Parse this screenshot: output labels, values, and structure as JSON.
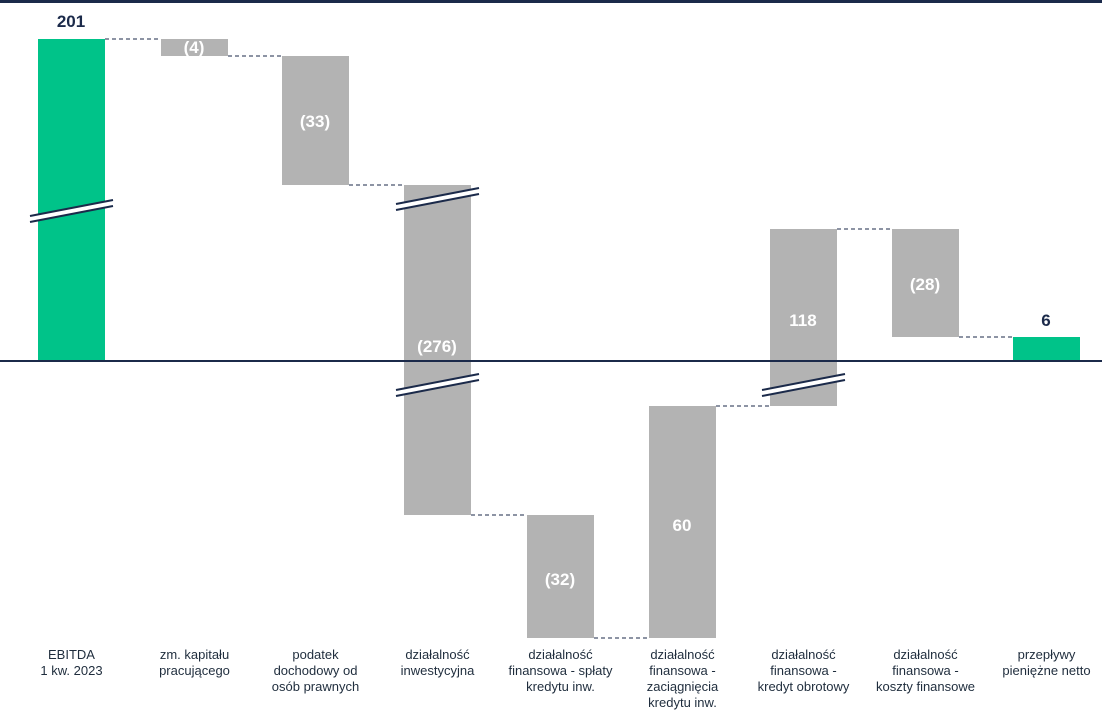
{
  "chart_data": {
    "type": "waterfall",
    "title": "",
    "xlabel": "",
    "ylabel": "",
    "axis_breaks": true,
    "categories": [
      "EBITDA\n1 kw. 2023",
      "zm. kapitału\npracującego",
      "podatek\ndochodowy od\nosób prawnych",
      "działalność\ninwestycyjna",
      "działalność\nfinansowa - spłaty\nkredytu inw.",
      "działalność\nfinansowa -\nzaciągnięcia\nkredytu inw.",
      "działalność\nfinansowa -\nkredyt obrotowy",
      "działalność\nfinansowa -\nkoszty finansowe",
      "przepływy\npieniężne netto"
    ],
    "values": [
      201,
      -4,
      -33,
      -276,
      -32,
      60,
      118,
      -28,
      6
    ],
    "value_labels": [
      "201",
      "(4)",
      "(33)",
      "(276)",
      "(32)",
      "60",
      "118",
      "(28)",
      "6"
    ],
    "bar_kinds": [
      "total",
      "delta",
      "delta",
      "delta",
      "delta",
      "delta",
      "delta",
      "delta",
      "total"
    ],
    "colors": {
      "total": "#00c389",
      "delta": "#b3b3b3",
      "frame": "#1b2a4a",
      "connector": "#1b2a4a",
      "total_label": "#1b2a4a",
      "delta_label": "#ffffff"
    }
  }
}
